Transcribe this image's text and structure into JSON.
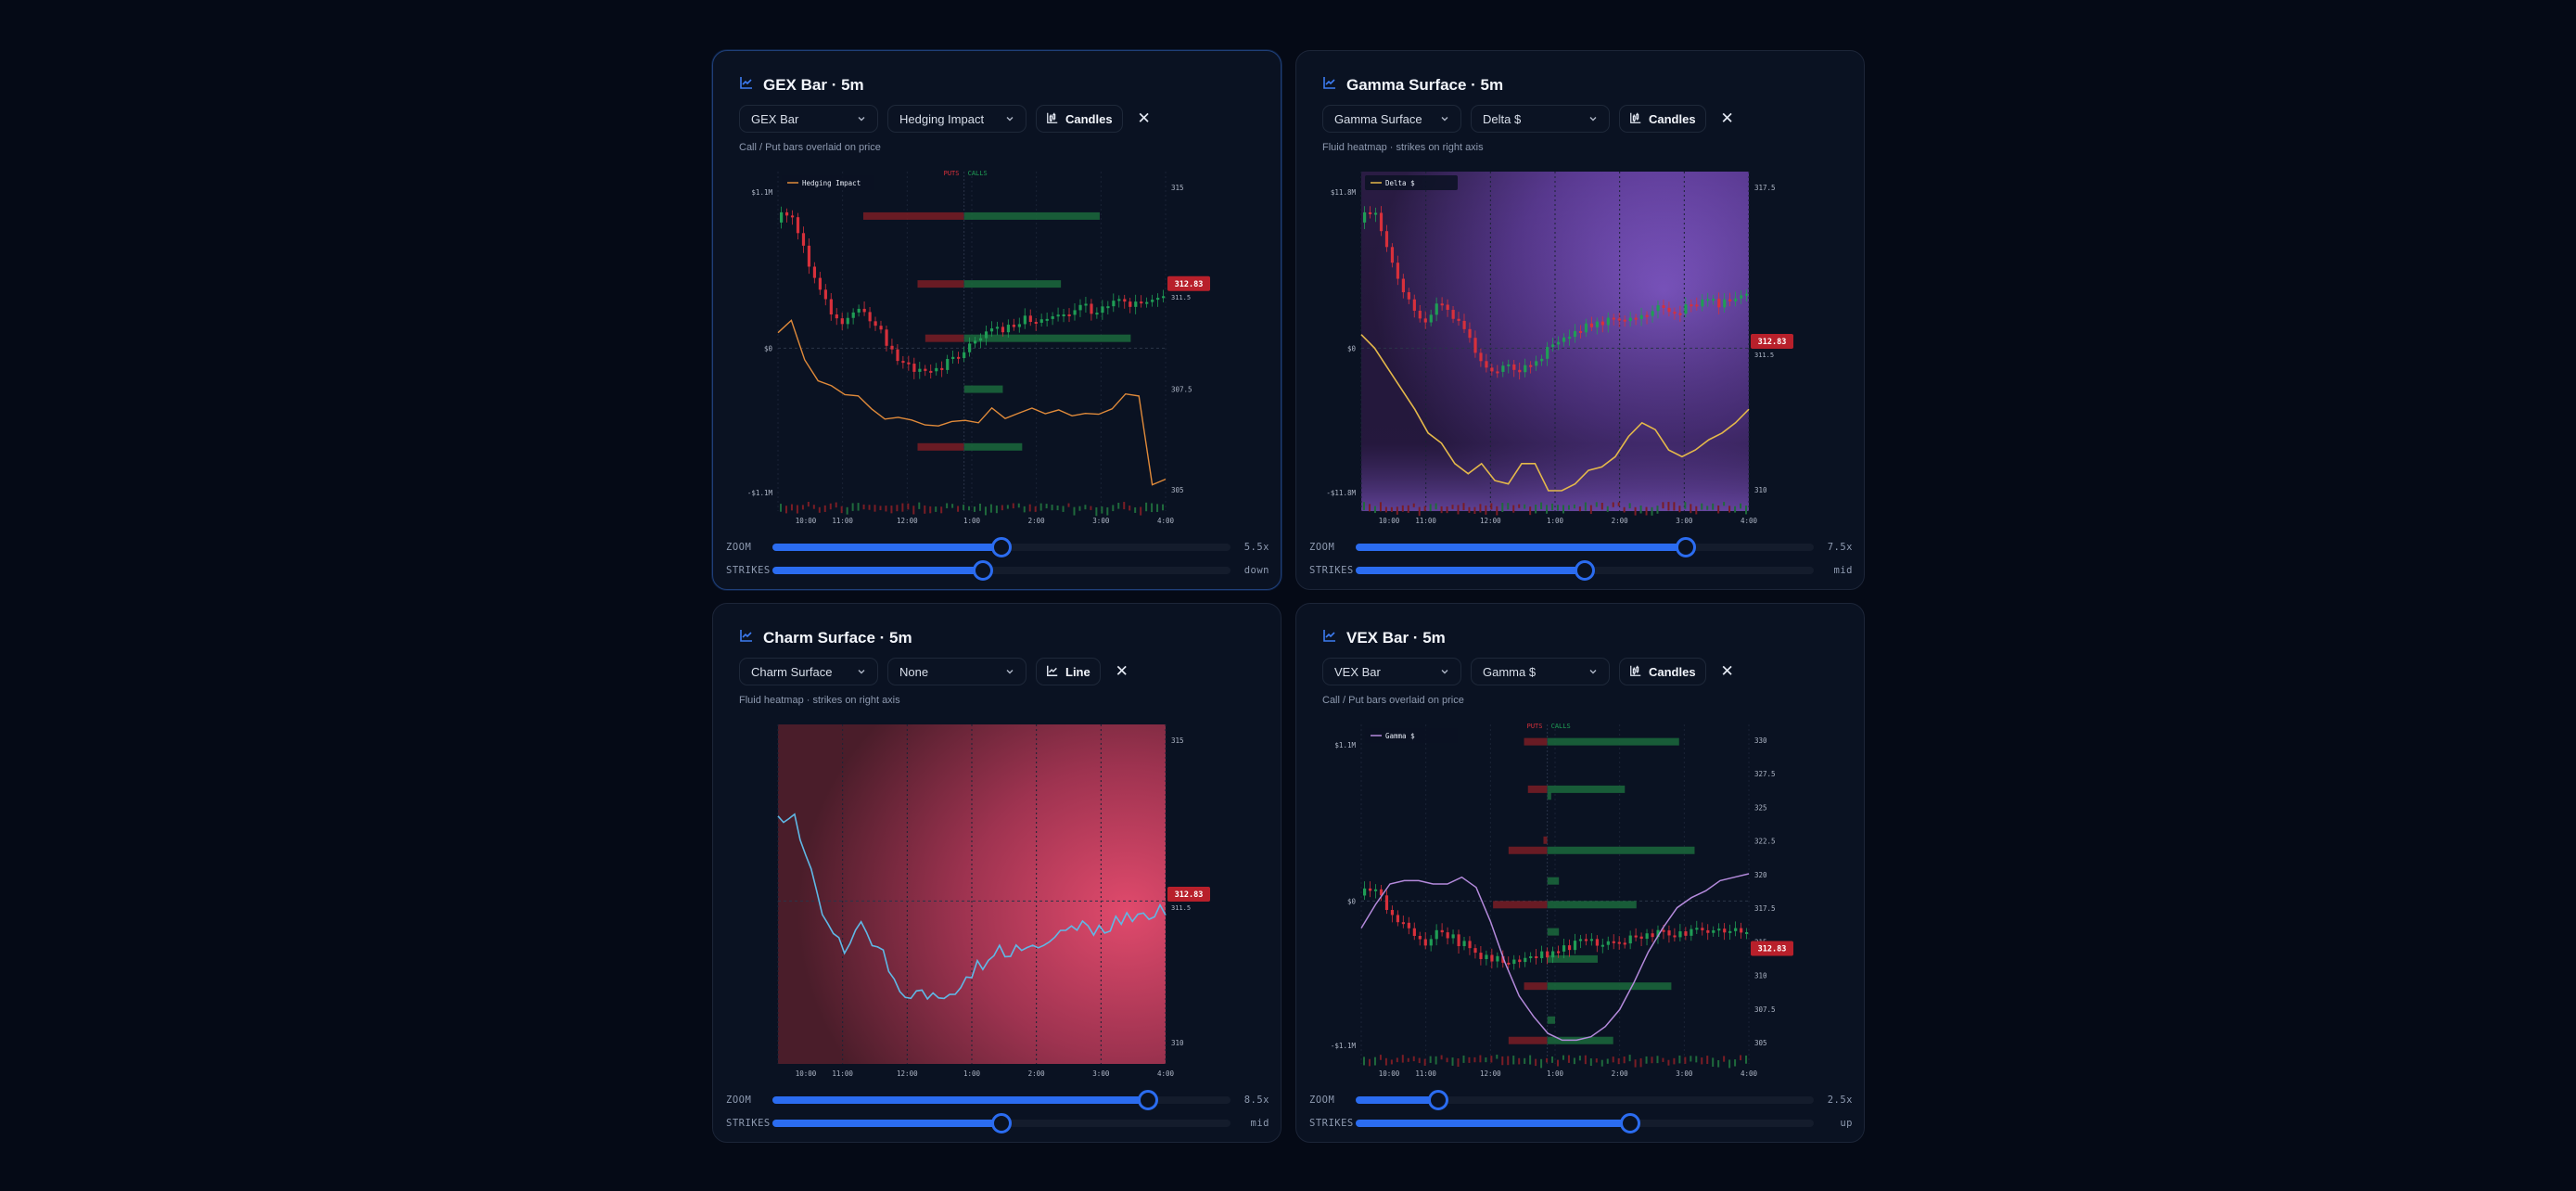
{
  "panels": [
    {
      "title": "GEX Bar · 5m",
      "chart_select": "GEX Bar",
      "overlay_select": "Hedging Impact",
      "mode_label": "Candles",
      "subtitle": "Call / Put bars overlaid on price",
      "legend": "Hedging Impact",
      "puts_label": "PUTS",
      "calls_label": "CALLS",
      "price_badge": "312.83",
      "price_sub": "311.5",
      "left_axis": [
        "$1.1M",
        "$0",
        "-$1.1M"
      ],
      "right_axis": [
        "315",
        "310",
        "307.5",
        "305"
      ],
      "x_ticks": [
        "10:00",
        "11:00",
        "12:00",
        "1:00",
        "2:00",
        "3:00",
        "4:00"
      ],
      "zoom_label": "ZOOM",
      "zoom_value_text": "5.5x",
      "zoom_level": 0.5,
      "strikes_label": "STRIKES",
      "strikes_value_text": "down",
      "strikes_level": 0.46
    },
    {
      "title": "Gamma Surface · 5m",
      "chart_select": "Gamma Surface",
      "overlay_select": "Delta $",
      "mode_label": "Candles",
      "subtitle": "Fluid heatmap · strikes on right axis",
      "legend": "Delta $",
      "price_badge": "312.83",
      "price_sub": "311.5",
      "left_axis": [
        "$11.8M",
        "$0",
        "-$11.8M"
      ],
      "right_axis": [
        "317.5",
        "315",
        "310"
      ],
      "x_ticks": [
        "10:00",
        "11:00",
        "12:00",
        "1:00",
        "2:00",
        "3:00",
        "4:00"
      ],
      "zoom_label": "ZOOM",
      "zoom_value_text": "7.5x",
      "zoom_level": 0.72,
      "strikes_label": "STRIKES",
      "strikes_value_text": "mid",
      "strikes_level": 0.5
    },
    {
      "title": "Charm Surface · 5m",
      "chart_select": "Charm Surface",
      "overlay_select": "None",
      "mode_label": "Line",
      "subtitle": "Fluid heatmap · strikes on right axis",
      "price_badge": "312.83",
      "price_sub": "311.5",
      "right_axis": [
        "315",
        "310"
      ],
      "x_ticks": [
        "10:00",
        "11:00",
        "12:00",
        "1:00",
        "2:00",
        "3:00",
        "4:00"
      ],
      "zoom_label": "ZOOM",
      "zoom_value_text": "8.5x",
      "zoom_level": 0.82,
      "strikes_label": "STRIKES",
      "strikes_value_text": "mid",
      "strikes_level": 0.5
    },
    {
      "title": "VEX Bar · 5m",
      "chart_select": "VEX Bar",
      "overlay_select": "Gamma $",
      "mode_label": "Candles",
      "subtitle": "Call / Put bars overlaid on price",
      "legend": "Gamma $",
      "puts_label": "PUTS",
      "calls_label": "CALLS",
      "price_badge": "312.83",
      "left_axis": [
        "$1.1M",
        "$0",
        "-$1.1M"
      ],
      "right_axis": [
        "330",
        "327.5",
        "325",
        "322.5",
        "320",
        "317.5",
        "315",
        "310",
        "307.5",
        "305"
      ],
      "x_ticks": [
        "10:00",
        "11:00",
        "12:00",
        "1:00",
        "2:00",
        "3:00",
        "4:00"
      ],
      "zoom_label": "ZOOM",
      "zoom_value_text": "2.5x",
      "zoom_level": 0.18,
      "strikes_label": "STRIKES",
      "strikes_value_text": "up",
      "strikes_level": 0.6
    }
  ],
  "colors": {
    "accent": "#2b6cf0",
    "bull": "#1f9d55",
    "bear": "#d7303b",
    "badge": "#b8202b",
    "hedging_line": "#e08a3a",
    "delta_line": "#e4b84a",
    "charm_line": "#5fb8e6",
    "gamma_line": "#b48adc"
  }
}
